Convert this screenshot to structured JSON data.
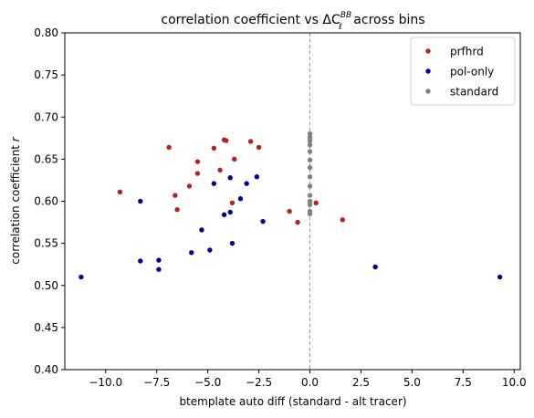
{
  "chart_data": {
    "type": "scatter",
    "title_prefix": "correlation coefficient vs ",
    "title_symbol": "ΔC",
    "title_sub": "ℓ",
    "title_sup": "BB",
    "title_suffix": " across bins",
    "xlabel": "btemplate auto diff (standard - alt tracer)",
    "ylabel_prefix": "correlation coefficient ",
    "ylabel_var": "r",
    "xlim": [
      -12.0,
      10.3
    ],
    "ylim": [
      0.4,
      0.8
    ],
    "xticks": [
      -10.0,
      -7.5,
      -5.0,
      -2.5,
      0.0,
      2.5,
      5.0,
      7.5,
      10.0
    ],
    "xtick_labels": [
      "−10.0",
      "−7.5",
      "−5.0",
      "−2.5",
      "0.0",
      "2.5",
      "5.0",
      "7.5",
      "10.0"
    ],
    "yticks": [
      0.4,
      0.45,
      0.5,
      0.55,
      0.6,
      0.65,
      0.7,
      0.75,
      0.8
    ],
    "ytick_labels": [
      "0.40",
      "0.45",
      "0.50",
      "0.55",
      "0.60",
      "0.65",
      "0.70",
      "0.75",
      "0.80"
    ],
    "grid": false,
    "vline": {
      "x": 0,
      "style": "dashed",
      "color": "#999999"
    },
    "legend_position": "top-right",
    "series": [
      {
        "name": "prfhrd",
        "color": "#b22222",
        "points": [
          [
            -9.3,
            0.611
          ],
          [
            -6.9,
            0.664
          ],
          [
            -6.6,
            0.607
          ],
          [
            -6.5,
            0.59
          ],
          [
            -5.9,
            0.618
          ],
          [
            -5.5,
            0.633
          ],
          [
            -5.5,
            0.647
          ],
          [
            -4.7,
            0.663
          ],
          [
            -4.4,
            0.637
          ],
          [
            -4.2,
            0.673
          ],
          [
            -4.1,
            0.672
          ],
          [
            -3.8,
            0.598
          ],
          [
            -3.7,
            0.65
          ],
          [
            -2.9,
            0.671
          ],
          [
            -2.5,
            0.664
          ],
          [
            -1.0,
            0.588
          ],
          [
            -0.6,
            0.575
          ],
          [
            0.3,
            0.598
          ],
          [
            1.6,
            0.578
          ]
        ]
      },
      {
        "name": "pol-only",
        "color": "#00008b",
        "points": [
          [
            -11.2,
            0.51
          ],
          [
            -8.3,
            0.529
          ],
          [
            -8.3,
            0.6
          ],
          [
            -7.4,
            0.53
          ],
          [
            -7.4,
            0.519
          ],
          [
            -5.8,
            0.539
          ],
          [
            -5.3,
            0.566
          ],
          [
            -4.9,
            0.542
          ],
          [
            -4.7,
            0.621
          ],
          [
            -4.2,
            0.584
          ],
          [
            -3.9,
            0.587
          ],
          [
            -3.9,
            0.628
          ],
          [
            -3.8,
            0.55
          ],
          [
            -3.4,
            0.603
          ],
          [
            -3.1,
            0.621
          ],
          [
            -2.6,
            0.629
          ],
          [
            -2.3,
            0.576
          ],
          [
            3.2,
            0.522
          ],
          [
            9.3,
            0.51
          ]
        ]
      },
      {
        "name": "standard",
        "color": "#808080",
        "points": [
          [
            0,
            0.68
          ],
          [
            0,
            0.676
          ],
          [
            0,
            0.672
          ],
          [
            0,
            0.667
          ],
          [
            0,
            0.659
          ],
          [
            0,
            0.649
          ],
          [
            0,
            0.64
          ],
          [
            0,
            0.629
          ],
          [
            0,
            0.618
          ],
          [
            0,
            0.607
          ],
          [
            0,
            0.6
          ],
          [
            0,
            0.596
          ],
          [
            0,
            0.588
          ],
          [
            0,
            0.585
          ]
        ]
      }
    ]
  }
}
